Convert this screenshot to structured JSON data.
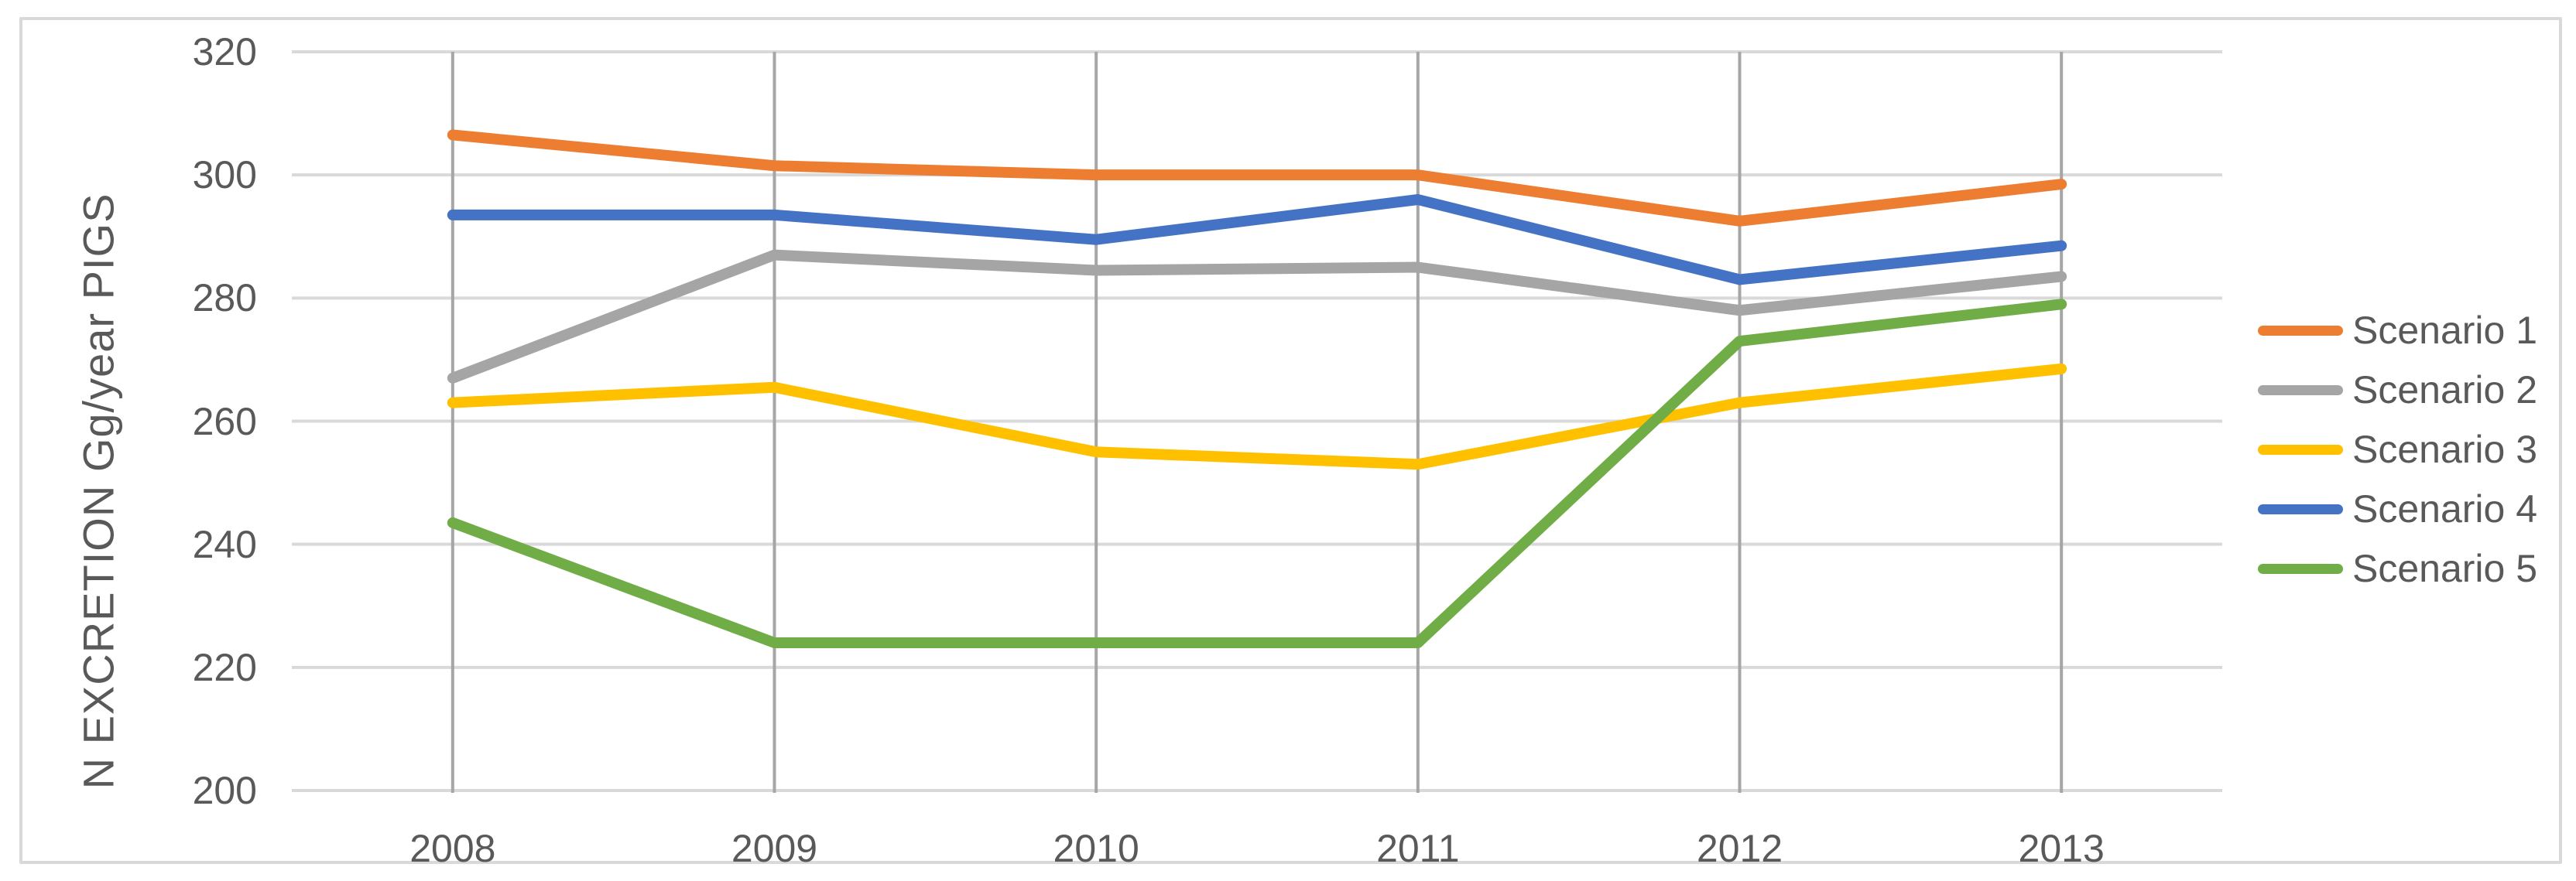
{
  "chart_data": {
    "type": "line",
    "title": "",
    "y_axis": {
      "label": "N EXCRETION Gg/year PIGS",
      "min": 200,
      "max": 320,
      "ticks": [
        320,
        300,
        280,
        260,
        240,
        220,
        200
      ]
    },
    "x_axis": {
      "categories": [
        "2008",
        "2009",
        "2010",
        "2011",
        "2012",
        "2013"
      ]
    },
    "series": [
      {
        "name": "Scenario 1",
        "color": "#ED7D31",
        "values": [
          306.5,
          301.5,
          300,
          300,
          292.5,
          298.5
        ]
      },
      {
        "name": "Scenario 2",
        "color": "#A5A5A5",
        "values": [
          267,
          287,
          284.5,
          285,
          278,
          283.5
        ]
      },
      {
        "name": "Scenario 3",
        "color": "#FFC000",
        "values": [
          263,
          265.5,
          255,
          253,
          263,
          268.5
        ]
      },
      {
        "name": "Scenario 4",
        "color": "#4472C4",
        "values": [
          293.5,
          293.5,
          289.5,
          296,
          283,
          288.5
        ]
      },
      {
        "name": "Scenario 5",
        "color": "#70AD47",
        "values": [
          243.5,
          224,
          224,
          224,
          273,
          279
        ]
      }
    ],
    "legend": {
      "position": "right",
      "items": [
        "Scenario 1",
        "Scenario 2",
        "Scenario 3",
        "Scenario 4",
        "Scenario 5"
      ]
    },
    "grid": {
      "horizontal": true,
      "vertical": true
    }
  },
  "colors": {
    "background": "#FFFFFF",
    "border": "#D9D9D9",
    "grid_horizontal": "#D9D9D9",
    "grid_vertical": "#A6A6A6",
    "axis_line": "#D9D9D9",
    "text": "#595959"
  }
}
